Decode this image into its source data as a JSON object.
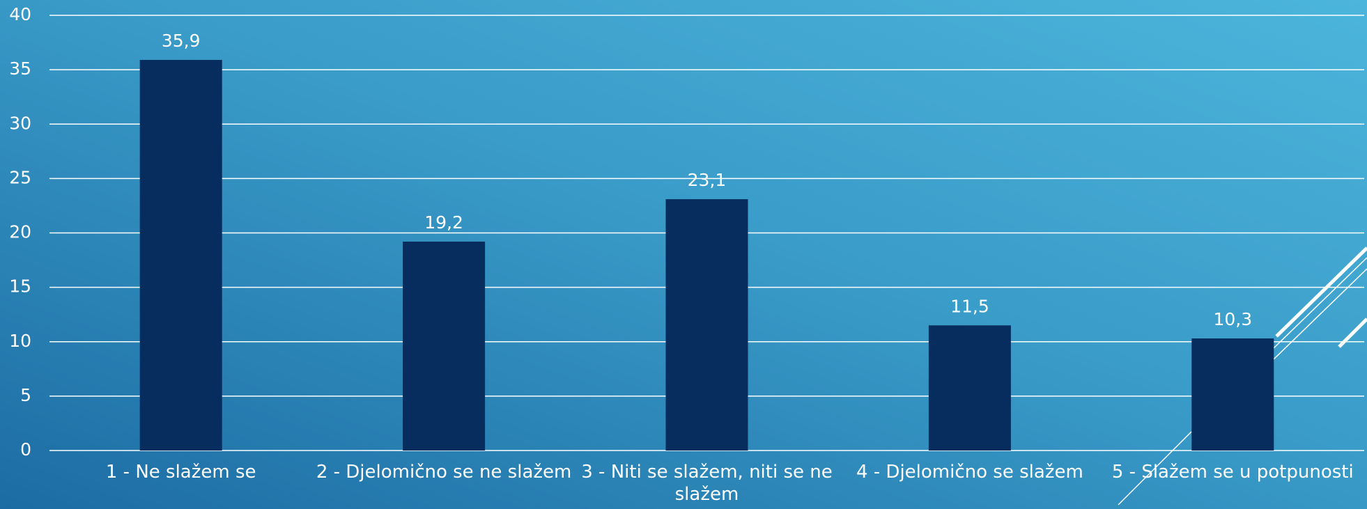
{
  "chart_data": {
    "type": "bar",
    "categories": [
      "1 - Ne slažem se",
      "2 - Djelomično se ne slažem",
      "3 - Niti se slažem, niti se ne slažem",
      "4 - Djelomično se slažem",
      "5 - Slažem se u potpunosti"
    ],
    "values": [
      35.9,
      19.2,
      23.1,
      11.5,
      10.3
    ],
    "value_labels": [
      "35,9",
      "19,2",
      "23,1",
      "11,5",
      "10,3"
    ],
    "color": "#062d5e",
    "ylim": [
      0,
      40
    ],
    "yticks": [
      0,
      5,
      10,
      15,
      20,
      25,
      30,
      35,
      40
    ],
    "grid": true
  }
}
